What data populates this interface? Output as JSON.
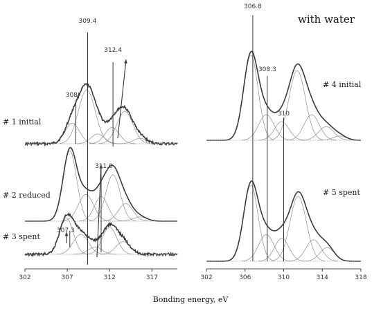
{
  "chart_data": {
    "type": "line",
    "xlabel": "Bonding energy, eV",
    "panels": [
      {
        "id": "left",
        "title": "",
        "xlim": [
          302,
          320
        ],
        "xticks": [
          302,
          307,
          312,
          317
        ],
        "xtick_labels": [
          "302",
          "307",
          "312",
          "317"
        ],
        "markers": [
          {
            "label": "309.4",
            "x": 309.4
          },
          {
            "label": "312.4",
            "x": 312.4
          },
          {
            "label": "308",
            "x": 308
          },
          {
            "label": "311.0",
            "x": 311.0
          },
          {
            "label": "307.3",
            "x": 307.3
          }
        ],
        "series": [
          {
            "name": "# 1 initial",
            "peaks": [
              {
                "center": 307.6,
                "height": 0.38,
                "width": 0.85
              },
              {
                "center": 309.3,
                "height": 1.0,
                "width": 1.0
              },
              {
                "center": 310.6,
                "height": 0.18,
                "width": 0.8
              },
              {
                "center": 312.3,
                "height": 0.3,
                "width": 0.85
              },
              {
                "center": 313.8,
                "height": 0.6,
                "width": 0.95
              },
              {
                "center": 315.6,
                "height": 0.1,
                "width": 0.8
              }
            ],
            "scale": 0.52,
            "baseline_y": 208,
            "noise": true
          },
          {
            "name": "# 2 reduced",
            "peaks": [
              {
                "center": 307.3,
                "height": 1.0,
                "width": 0.8
              },
              {
                "center": 309.2,
                "height": 0.38,
                "width": 0.9
              },
              {
                "center": 311.0,
                "height": 0.35,
                "width": 0.8
              },
              {
                "center": 312.4,
                "height": 0.66,
                "width": 0.85
              },
              {
                "center": 313.9,
                "height": 0.25,
                "width": 0.85
              },
              {
                "center": 315.6,
                "height": 0.06,
                "width": 0.8
              }
            ],
            "scale": 0.68,
            "baseline_y": 320,
            "noise": false
          },
          {
            "name": "# 3 spent",
            "peaks": [
              {
                "center": 306.9,
                "height": 1.0,
                "width": 0.8
              },
              {
                "center": 308.6,
                "height": 0.55,
                "width": 0.9
              },
              {
                "center": 310.3,
                "height": 0.2,
                "width": 0.8
              },
              {
                "center": 312.0,
                "height": 0.75,
                "width": 0.85
              },
              {
                "center": 313.6,
                "height": 0.35,
                "width": 0.85
              }
            ],
            "scale": 0.35,
            "baseline_y": 368,
            "noise": true
          }
        ]
      },
      {
        "id": "right",
        "title": "with water",
        "xlim": [
          302,
          318
        ],
        "xticks": [
          302,
          306,
          310,
          314,
          318
        ],
        "xtick_labels": [
          "302",
          "306",
          "310",
          "314",
          "318"
        ],
        "markers": [
          {
            "label": "306.8",
            "x": 306.8
          },
          {
            "label": "308.3",
            "x": 308.3
          },
          {
            "label": "310",
            "x": 310
          }
        ],
        "series": [
          {
            "name": "# 4 initial",
            "peaks": [
              {
                "center": 306.6,
                "height": 1.0,
                "width": 0.75
              },
              {
                "center": 308.2,
                "height": 0.3,
                "width": 0.8
              },
              {
                "center": 309.8,
                "height": 0.22,
                "width": 0.75
              },
              {
                "center": 311.4,
                "height": 0.82,
                "width": 0.85
              },
              {
                "center": 312.9,
                "height": 0.3,
                "width": 0.8
              },
              {
                "center": 314.4,
                "height": 0.16,
                "width": 0.8
              },
              {
                "center": 315.8,
                "height": 0.05,
                "width": 0.7
              }
            ],
            "scale": 0.77,
            "baseline_y": 203,
            "noise": false
          },
          {
            "name": "# 5 spent",
            "peaks": [
              {
                "center": 306.6,
                "height": 1.0,
                "width": 0.75
              },
              {
                "center": 308.2,
                "height": 0.35,
                "width": 0.8
              },
              {
                "center": 309.8,
                "height": 0.3,
                "width": 0.75
              },
              {
                "center": 311.5,
                "height": 0.85,
                "width": 0.85
              },
              {
                "center": 313.1,
                "height": 0.28,
                "width": 0.8
              },
              {
                "center": 314.5,
                "height": 0.18,
                "width": 0.75
              }
            ],
            "scale": 0.69,
            "baseline_y": 378,
            "noise": false
          }
        ]
      }
    ]
  }
}
